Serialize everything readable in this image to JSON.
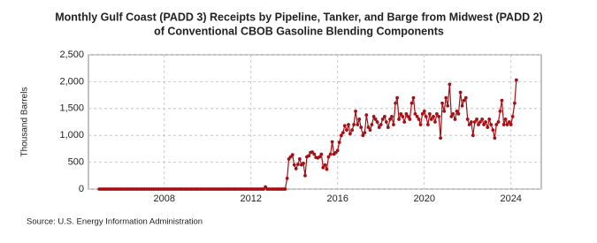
{
  "chart_data": {
    "type": "line",
    "title": [
      "Monthly Gulf Coast (PADD 3) Receipts by Pipeline, Tanker, and Barge from Midwest (PADD 2)",
      "of Conventional CBOB Gasoline Blending Components"
    ],
    "y_label": "Thousand Barrels",
    "source": "Source: U.S. Energy Information Administration",
    "xlim": [
      2004.5,
      2025.4
    ],
    "xticks": [
      2008,
      2012,
      2016,
      2020,
      2024
    ],
    "ylim": [
      0,
      2500
    ],
    "yticks": [
      0,
      {
        "value": 500,
        "label": "500"
      },
      {
        "value": 1000,
        "label": "1,000"
      },
      {
        "value": 1500,
        "label": "1,500"
      },
      {
        "value": 2000,
        "label": "2,000"
      },
      {
        "value": 2500,
        "label": "2,500"
      }
    ],
    "grid": true,
    "series": [
      {
        "color": "#a50f15",
        "x": [
          2005.0,
          2005.08,
          2005.17,
          2005.25,
          2005.33,
          2005.42,
          2005.5,
          2005.58,
          2005.67,
          2005.75,
          2005.83,
          2005.92,
          2006.0,
          2006.08,
          2006.17,
          2006.25,
          2006.33,
          2006.42,
          2006.5,
          2006.58,
          2006.67,
          2006.75,
          2006.83,
          2006.92,
          2007.0,
          2007.08,
          2007.17,
          2007.25,
          2007.33,
          2007.42,
          2007.5,
          2007.58,
          2007.67,
          2007.75,
          2007.83,
          2007.92,
          2008.0,
          2008.08,
          2008.17,
          2008.25,
          2008.33,
          2008.42,
          2008.5,
          2008.58,
          2008.67,
          2008.75,
          2008.83,
          2008.92,
          2009.0,
          2009.08,
          2009.17,
          2009.25,
          2009.33,
          2009.42,
          2009.5,
          2009.58,
          2009.67,
          2009.75,
          2009.83,
          2009.92,
          2010.0,
          2010.08,
          2010.17,
          2010.25,
          2010.33,
          2010.42,
          2010.5,
          2010.58,
          2010.67,
          2010.75,
          2010.83,
          2010.92,
          2011.0,
          2011.08,
          2011.17,
          2011.25,
          2011.33,
          2011.42,
          2011.5,
          2011.58,
          2011.67,
          2011.75,
          2011.83,
          2011.92,
          2012.0,
          2012.08,
          2012.17,
          2012.25,
          2012.33,
          2012.42,
          2012.5,
          2012.58,
          2012.67,
          2012.75,
          2012.83,
          2012.92,
          2013.0,
          2013.08,
          2013.17,
          2013.25,
          2013.33,
          2013.42,
          2013.5,
          2013.58,
          2013.67,
          2013.75,
          2013.83,
          2013.92,
          2014.0,
          2014.08,
          2014.17,
          2014.25,
          2014.33,
          2014.42,
          2014.5,
          2014.58,
          2014.67,
          2014.75,
          2014.83,
          2014.92,
          2015.0,
          2015.08,
          2015.17,
          2015.25,
          2015.33,
          2015.42,
          2015.5,
          2015.58,
          2015.67,
          2015.75,
          2015.83,
          2015.92,
          2016.0,
          2016.08,
          2016.17,
          2016.25,
          2016.33,
          2016.42,
          2016.5,
          2016.58,
          2016.67,
          2016.75,
          2016.83,
          2016.92,
          2017.0,
          2017.08,
          2017.17,
          2017.25,
          2017.33,
          2017.42,
          2017.5,
          2017.58,
          2017.67,
          2017.75,
          2017.83,
          2017.92,
          2018.0,
          2018.08,
          2018.17,
          2018.25,
          2018.33,
          2018.42,
          2018.5,
          2018.58,
          2018.67,
          2018.75,
          2018.83,
          2018.92,
          2019.0,
          2019.08,
          2019.17,
          2019.25,
          2019.33,
          2019.42,
          2019.5,
          2019.58,
          2019.67,
          2019.75,
          2019.83,
          2019.92,
          2020.0,
          2020.08,
          2020.17,
          2020.25,
          2020.33,
          2020.42,
          2020.5,
          2020.58,
          2020.67,
          2020.75,
          2020.83,
          2020.92,
          2021.0,
          2021.08,
          2021.17,
          2021.25,
          2021.33,
          2021.42,
          2021.5,
          2021.58,
          2021.67,
          2021.75,
          2021.83,
          2021.92,
          2022.0,
          2022.08,
          2022.17,
          2022.25,
          2022.33,
          2022.42,
          2022.5,
          2022.58,
          2022.67,
          2022.75,
          2022.83,
          2022.92,
          2023.0,
          2023.08,
          2023.17,
          2023.25,
          2023.33,
          2023.42,
          2023.5,
          2023.58,
          2023.67,
          2023.75,
          2023.83,
          2023.92,
          2024.0,
          2024.08,
          2024.17,
          2024.25
        ],
        "values": [
          0,
          0,
          0,
          0,
          0,
          0,
          0,
          0,
          0,
          0,
          0,
          0,
          0,
          0,
          0,
          0,
          0,
          0,
          0,
          0,
          0,
          0,
          0,
          0,
          0,
          0,
          0,
          0,
          0,
          0,
          0,
          0,
          0,
          0,
          0,
          0,
          0,
          0,
          0,
          0,
          0,
          0,
          0,
          0,
          0,
          0,
          0,
          0,
          0,
          0,
          0,
          0,
          0,
          0,
          0,
          0,
          0,
          0,
          0,
          0,
          0,
          0,
          0,
          0,
          0,
          0,
          0,
          0,
          0,
          0,
          0,
          0,
          0,
          0,
          0,
          0,
          0,
          0,
          0,
          0,
          0,
          0,
          0,
          0,
          0,
          0,
          0,
          0,
          0,
          0,
          0,
          0,
          40,
          0,
          0,
          0,
          0,
          0,
          0,
          0,
          0,
          0,
          0,
          0,
          200,
          560,
          600,
          640,
          450,
          380,
          460,
          560,
          450,
          480,
          250,
          600,
          620,
          680,
          690,
          650,
          590,
          580,
          600,
          650,
          400,
          450,
          370,
          600,
          650,
          880,
          650,
          680,
          720,
          870,
          1000,
          1050,
          1180,
          1100,
          1200,
          1030,
          1100,
          1200,
          1450,
          1200,
          1300,
          1150,
          1000,
          1050,
          1380,
          1150,
          1100,
          1200,
          1350,
          1300,
          1250,
          1150,
          1200,
          1300,
          1350,
          1250,
          1150,
          1300,
          1350,
          1200,
          1600,
          1700,
          1300,
          1400,
          1350,
          1250,
          1400,
          1350,
          1300,
          1600,
          1700,
          1400,
          1350,
          1300,
          1200,
          1400,
          1450,
          1350,
          1200,
          1400,
          1300,
          1350,
          1250,
          1400,
          1350,
          950,
          1600,
          1450,
          1700,
          1550,
          1950,
          1350,
          1400,
          1300,
          1450,
          1400,
          1800,
          1550,
          1650,
          1700,
          1300,
          1200,
          1250,
          1000,
          1250,
          1300,
          1200,
          1250,
          1300,
          1200,
          1250,
          1150,
          1300,
          1200,
          1100,
          950,
          1200,
          1250,
          1450,
          1650,
          1200,
          1300,
          1200,
          1250,
          1200,
          1350,
          1600,
          2030
        ]
      }
    ]
  }
}
